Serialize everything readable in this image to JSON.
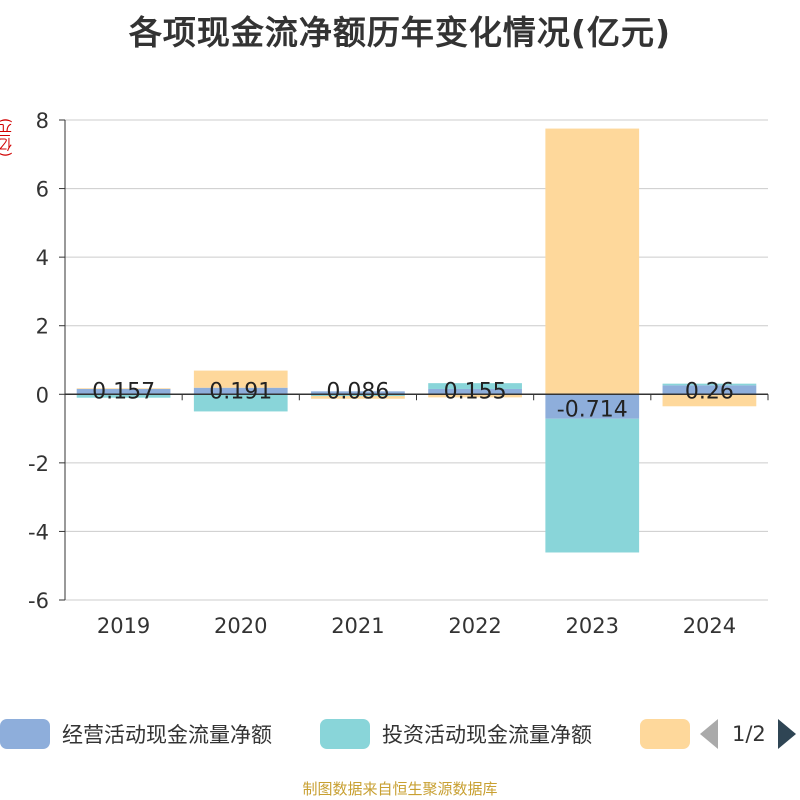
{
  "chart_data": {
    "type": "bar",
    "stacked": true,
    "title": "各项现金流净额历年变化情况(亿元)",
    "ylabel": "(亿元)",
    "categories": [
      "2019",
      "2020",
      "2021",
      "2022",
      "2023",
      "2024"
    ],
    "ylim": [
      -6,
      8
    ],
    "yticks": [
      8,
      6,
      4,
      2,
      0,
      -2,
      -4,
      -6
    ],
    "grid": true,
    "series": [
      {
        "name": "经营活动现金流量净额",
        "color": "#8eaedb",
        "values": [
          0.157,
          0.191,
          0.086,
          0.155,
          -0.714,
          0.26
        ],
        "labels": [
          "0.157",
          "0.191",
          "0.086",
          "0.155",
          "-0.714",
          "0.26"
        ]
      },
      {
        "name": "投资活动现金流量净额",
        "color": "#89d5d9",
        "values": [
          -0.1,
          -0.5,
          -0.05,
          0.17,
          -3.9,
          0.05
        ],
        "labels": null
      },
      {
        "name": "",
        "color": "#fed89b",
        "values": [
          0.02,
          0.5,
          -0.08,
          -0.09,
          7.75,
          -0.35
        ],
        "labels": null
      }
    ],
    "legend_position": "bottom",
    "legend_page": "1/2"
  },
  "footer": "制图数据来自恒生聚源数据库"
}
